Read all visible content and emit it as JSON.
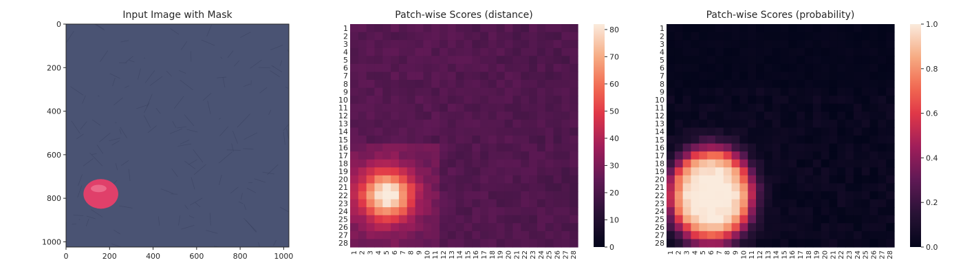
{
  "figure": {
    "panels": [
      {
        "title": "Input Image with Mask"
      },
      {
        "title": "Patch-wise Scores (distance)"
      },
      {
        "title": "Patch-wise Scores (probability)"
      }
    ]
  },
  "chart_data": [
    {
      "type": "image",
      "title": "Input Image with Mask",
      "x_ticks": [
        0,
        200,
        400,
        600,
        800,
        1000
      ],
      "y_ticks": [
        0,
        200,
        400,
        600,
        800,
        1000
      ],
      "xlim": [
        0,
        1024
      ],
      "ylim": [
        1024,
        0
      ],
      "background_color": "#4a5373",
      "mask_color": "#e0406a",
      "mask_blob": {
        "cx": 160,
        "cy": 780,
        "rx": 80,
        "ry": 68
      }
    },
    {
      "type": "heatmap",
      "title": "Patch-wise Scores (distance)",
      "rows": [
        "1",
        "2",
        "3",
        "4",
        "5",
        "6",
        "7",
        "8",
        "9",
        "10",
        "11",
        "12",
        "13",
        "14",
        "15",
        "16",
        "17",
        "18",
        "19",
        "20",
        "21",
        "22",
        "23",
        "24",
        "25",
        "26",
        "27",
        "28"
      ],
      "cols": [
        "1",
        "2",
        "3",
        "4",
        "5",
        "6",
        "7",
        "8",
        "9",
        "10",
        "11",
        "12",
        "13",
        "14",
        "15",
        "16",
        "17",
        "18",
        "19",
        "20",
        "21",
        "22",
        "23",
        "24",
        "25",
        "26",
        "27",
        "28"
      ],
      "colorbar": {
        "min": 0,
        "max": 82,
        "ticks": [
          0,
          10,
          20,
          30,
          40,
          50,
          60,
          70,
          80
        ]
      },
      "hotspot": {
        "row": 22,
        "col": 5,
        "peak": 80,
        "sigma": 2.0
      },
      "baseline": 23,
      "colormap": "rocket"
    },
    {
      "type": "heatmap",
      "title": "Patch-wise Scores (probability)",
      "rows": [
        "1",
        "2",
        "3",
        "4",
        "5",
        "6",
        "7",
        "8",
        "9",
        "10",
        "11",
        "12",
        "13",
        "14",
        "15",
        "16",
        "17",
        "18",
        "19",
        "20",
        "21",
        "22",
        "23",
        "24",
        "25",
        "26",
        "27",
        "28"
      ],
      "cols": [
        "1",
        "2",
        "3",
        "4",
        "5",
        "6",
        "7",
        "8",
        "9",
        "10",
        "11",
        "12",
        "13",
        "14",
        "15",
        "16",
        "17",
        "18",
        "19",
        "20",
        "21",
        "22",
        "23",
        "24",
        "25",
        "26",
        "27",
        "28"
      ],
      "colorbar": {
        "min": 0.0,
        "max": 1.0,
        "ticks": [
          "0.0",
          "0.2",
          "0.4",
          "0.6",
          "0.8",
          "1.0"
        ]
      },
      "hotspot": {
        "row": 22,
        "col": 6,
        "peak": 1.0
      },
      "colormap": "rocket"
    }
  ]
}
